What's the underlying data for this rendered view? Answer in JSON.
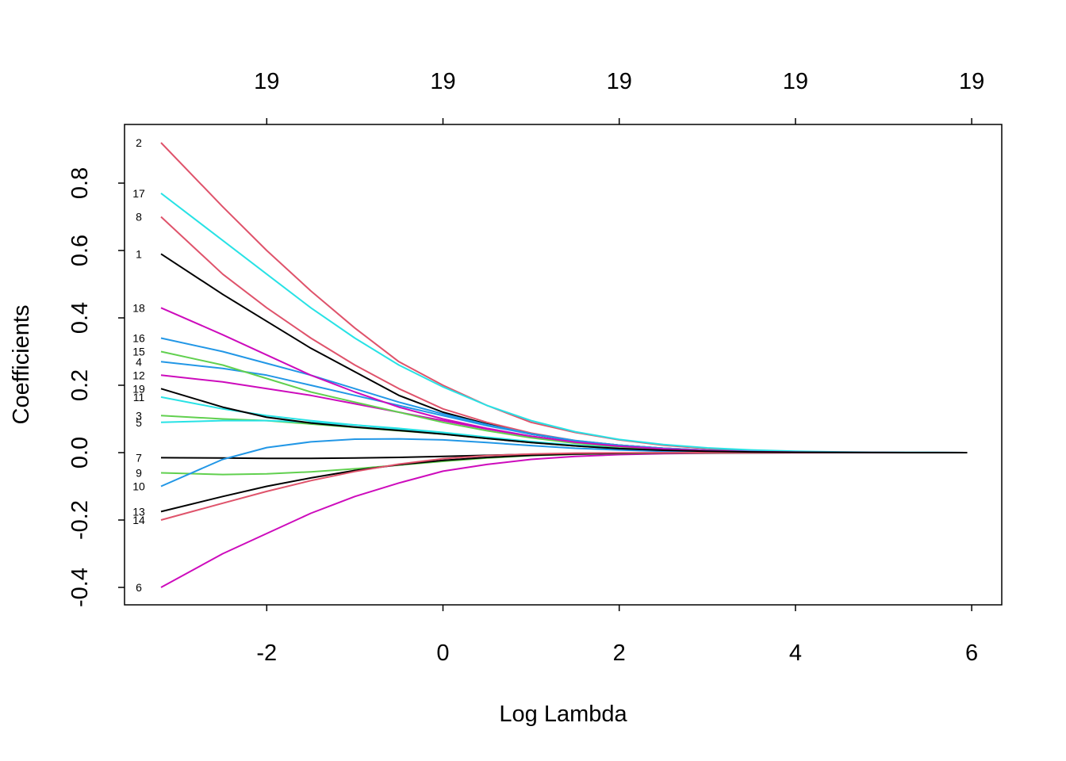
{
  "chart_data": {
    "type": "line",
    "xlabel": "Log Lambda",
    "ylabel": "Coefficients",
    "xlim": [
      -3.2,
      5.95
    ],
    "ylim": [
      -0.45,
      0.95
    ],
    "x_ticks": [
      "-2",
      "0",
      "2",
      "4",
      "6"
    ],
    "y_ticks": [
      "-0.4",
      "-0.2",
      "0.0",
      "0.2",
      "0.4",
      "0.6",
      "0.8"
    ],
    "top_axis": {
      "tick_positions": [
        -2,
        0,
        2,
        4,
        6
      ],
      "labels": [
        "19",
        "19",
        "19",
        "19",
        "19"
      ]
    },
    "grid": false,
    "legend": "none",
    "x": [
      -3.2,
      -2.5,
      -2.0,
      -1.5,
      -1.0,
      -0.5,
      0.0,
      0.5,
      1.0,
      1.5,
      2.0,
      2.5,
      3.0,
      3.5,
      4.0,
      4.5,
      5.0,
      5.5,
      5.95
    ],
    "series": [
      {
        "name": "1",
        "color": "#000000",
        "values": [
          0.59,
          0.47,
          0.39,
          0.31,
          0.24,
          0.17,
          0.12,
          0.085,
          0.055,
          0.035,
          0.022,
          0.013,
          0.007,
          0.004,
          0.002,
          0.001,
          0.0005,
          0.0002,
          0.0
        ]
      },
      {
        "name": "2",
        "color": "#DF536B",
        "values": [
          0.92,
          0.73,
          0.6,
          0.48,
          0.37,
          0.27,
          0.2,
          0.14,
          0.09,
          0.06,
          0.038,
          0.022,
          0.012,
          0.006,
          0.003,
          0.0015,
          0.0007,
          0.0003,
          0.0
        ]
      },
      {
        "name": "3",
        "color": "#61D04F",
        "values": [
          0.11,
          0.1,
          0.095,
          0.085,
          0.075,
          0.065,
          0.055,
          0.042,
          0.03,
          0.02,
          0.012,
          0.007,
          0.004,
          0.002,
          0.001,
          0.0005,
          0.0002,
          0.0001,
          0.0
        ]
      },
      {
        "name": "4",
        "color": "#2297E6",
        "values": [
          0.27,
          0.25,
          0.23,
          0.2,
          0.17,
          0.14,
          0.11,
          0.08,
          0.055,
          0.035,
          0.022,
          0.013,
          0.007,
          0.004,
          0.002,
          0.001,
          0.0005,
          0.0002,
          0.0
        ]
      },
      {
        "name": "5",
        "color": "#28E2E5",
        "values": [
          0.09,
          0.095,
          0.095,
          0.09,
          0.082,
          0.072,
          0.06,
          0.046,
          0.033,
          0.022,
          0.014,
          0.008,
          0.004,
          0.002,
          0.001,
          0.0005,
          0.0002,
          0.0001,
          0.0
        ]
      },
      {
        "name": "6",
        "color": "#CD0BBC",
        "values": [
          -0.4,
          -0.3,
          -0.24,
          -0.18,
          -0.13,
          -0.09,
          -0.055,
          -0.035,
          -0.02,
          -0.011,
          -0.006,
          -0.003,
          -0.0015,
          -0.0007,
          -0.0003,
          -0.0001,
          0.0,
          0.0,
          0.0
        ]
      },
      {
        "name": "7",
        "color": "#000000",
        "values": [
          -0.015,
          -0.016,
          -0.017,
          -0.017,
          -0.016,
          -0.014,
          -0.011,
          -0.008,
          -0.005,
          -0.003,
          -0.0015,
          -0.0008,
          -0.0004,
          -0.0002,
          -0.0001,
          0.0,
          0.0,
          0.0,
          0.0
        ]
      },
      {
        "name": "8",
        "color": "#DF536B",
        "values": [
          0.7,
          0.53,
          0.43,
          0.34,
          0.26,
          0.19,
          0.13,
          0.09,
          0.058,
          0.036,
          0.022,
          0.013,
          0.007,
          0.004,
          0.002,
          0.001,
          0.0005,
          0.0002,
          0.0
        ]
      },
      {
        "name": "9",
        "color": "#61D04F",
        "values": [
          -0.06,
          -0.065,
          -0.063,
          -0.057,
          -0.048,
          -0.037,
          -0.026,
          -0.016,
          -0.009,
          -0.005,
          -0.0025,
          -0.0012,
          -0.0006,
          -0.0003,
          -0.0001,
          0.0,
          0.0,
          0.0,
          0.0
        ]
      },
      {
        "name": "10",
        "color": "#2297E6",
        "values": [
          -0.1,
          -0.02,
          0.015,
          0.032,
          0.04,
          0.041,
          0.038,
          0.03,
          0.021,
          0.013,
          0.008,
          0.004,
          0.002,
          0.001,
          0.0005,
          0.0002,
          0.0001,
          0.0,
          0.0
        ]
      },
      {
        "name": "11",
        "color": "#28E2E5",
        "values": [
          0.165,
          0.13,
          0.11,
          0.095,
          0.082,
          0.07,
          0.058,
          0.045,
          0.032,
          0.021,
          0.013,
          0.008,
          0.004,
          0.002,
          0.001,
          0.0005,
          0.0002,
          0.0001,
          0.0
        ]
      },
      {
        "name": "12",
        "color": "#CD0BBC",
        "values": [
          0.23,
          0.21,
          0.19,
          0.17,
          0.145,
          0.12,
          0.095,
          0.07,
          0.048,
          0.031,
          0.019,
          0.011,
          0.006,
          0.003,
          0.0015,
          0.0007,
          0.0003,
          0.0001,
          0.0
        ]
      },
      {
        "name": "13",
        "color": "#000000",
        "values": [
          -0.175,
          -0.13,
          -0.1,
          -0.075,
          -0.053,
          -0.036,
          -0.023,
          -0.014,
          -0.008,
          -0.004,
          -0.002,
          -0.001,
          -0.0005,
          -0.0002,
          -0.0001,
          0.0,
          0.0,
          0.0,
          0.0
        ]
      },
      {
        "name": "14",
        "color": "#DF536B",
        "values": [
          -0.2,
          -0.15,
          -0.115,
          -0.083,
          -0.056,
          -0.034,
          -0.018,
          -0.009,
          -0.004,
          -0.0015,
          -0.0005,
          -0.0002,
          0.0,
          0.0,
          0.0,
          0.0,
          0.0,
          0.0,
          0.0
        ]
      },
      {
        "name": "15",
        "color": "#61D04F",
        "values": [
          0.3,
          0.26,
          0.22,
          0.18,
          0.15,
          0.12,
          0.09,
          0.065,
          0.044,
          0.028,
          0.017,
          0.01,
          0.005,
          0.003,
          0.0013,
          0.0005,
          0.0002,
          0.0,
          0.0
        ]
      },
      {
        "name": "16",
        "color": "#2297E6",
        "values": [
          0.34,
          0.3,
          0.265,
          0.23,
          0.19,
          0.15,
          0.115,
          0.083,
          0.056,
          0.036,
          0.022,
          0.013,
          0.007,
          0.004,
          0.002,
          0.001,
          0.0005,
          0.0002,
          0.0
        ]
      },
      {
        "name": "17",
        "color": "#28E2E5",
        "values": [
          0.77,
          0.63,
          0.53,
          0.43,
          0.34,
          0.26,
          0.195,
          0.14,
          0.095,
          0.062,
          0.039,
          0.024,
          0.014,
          0.008,
          0.004,
          0.002,
          0.001,
          0.0004,
          0.0
        ]
      },
      {
        "name": "18",
        "color": "#CD0BBC",
        "values": [
          0.43,
          0.35,
          0.29,
          0.23,
          0.18,
          0.135,
          0.1,
          0.072,
          0.049,
          0.031,
          0.019,
          0.011,
          0.006,
          0.003,
          0.0015,
          0.0007,
          0.0003,
          0.0001,
          0.0
        ]
      },
      {
        "name": "19",
        "color": "#000000",
        "values": [
          0.19,
          0.135,
          0.105,
          0.088,
          0.076,
          0.066,
          0.055,
          0.042,
          0.03,
          0.02,
          0.012,
          0.007,
          0.004,
          0.002,
          0.001,
          0.0005,
          0.0002,
          0.0001,
          0.0
        ]
      }
    ]
  }
}
